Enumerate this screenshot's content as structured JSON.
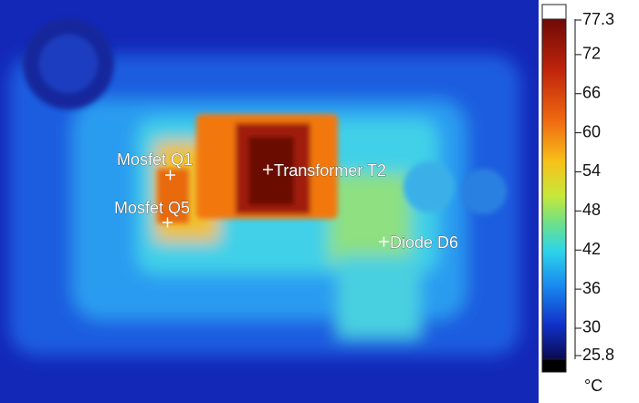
{
  "annotations": [
    "Mosfet Q1",
    "Mosfet Q5",
    "Transformer T2",
    "Diode D6"
  ],
  "colorbar": {
    "range": [
      25.8,
      77.3
    ],
    "ticks": [
      77.3,
      72,
      66,
      60,
      54,
      48,
      42,
      36,
      30,
      25.8
    ],
    "unit": "°C"
  }
}
